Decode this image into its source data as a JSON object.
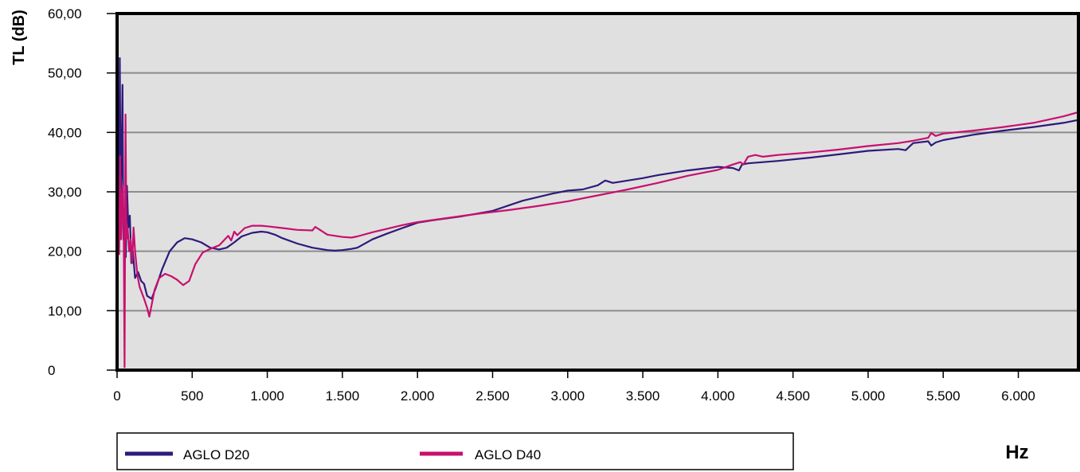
{
  "chart_data": {
    "type": "line",
    "ylabel": "TL (dB)",
    "xlabel": "Hz",
    "xlim": [
      0,
      6400
    ],
    "ylim": [
      0,
      60
    ],
    "grid": true,
    "legend_position": "bottom",
    "plot_background": "#e0e0e0",
    "x_ticks": [
      0,
      500,
      1000,
      1500,
      2000,
      2500,
      3000,
      3500,
      4000,
      4500,
      5000,
      5500,
      6000
    ],
    "x_tick_labels": [
      "0",
      "500",
      "1.000",
      "1.500",
      "2.000",
      "2.500",
      "3.000",
      "3.500",
      "4.000",
      "4.500",
      "5.000",
      "5.500",
      "6.000"
    ],
    "y_ticks": [
      0,
      10,
      20,
      30,
      40,
      50,
      60
    ],
    "y_tick_labels": [
      "0",
      "10,00",
      "20,00",
      "30,00",
      "40,00",
      "50,00",
      "60,00"
    ],
    "series": [
      {
        "name": "AGLO D20",
        "color": "#2e1a7a",
        "x": [
          0,
          6,
          12,
          18,
          24,
          30,
          36,
          42,
          50,
          58,
          66,
          75,
          85,
          95,
          105,
          120,
          140,
          160,
          180,
          200,
          230,
          260,
          300,
          350,
          400,
          450,
          500,
          560,
          620,
          680,
          730,
          780,
          830,
          900,
          960,
          1000,
          1050,
          1100,
          1200,
          1300,
          1400,
          1450,
          1500,
          1560,
          1600,
          1700,
          1800,
          1900,
          2000,
          2100,
          2300,
          2500,
          2700,
          2900,
          3000,
          3100,
          3200,
          3250,
          3300,
          3400,
          3500,
          3600,
          3700,
          3800,
          3900,
          4000,
          4100,
          4140,
          4160,
          4200,
          4400,
          4600,
          4800,
          5000,
          5200,
          5250,
          5300,
          5400,
          5420,
          5450,
          5500,
          5700,
          5900,
          6100,
          6300,
          6400
        ],
        "y": [
          7,
          40,
          26,
          52.5,
          29,
          35,
          48,
          22,
          27,
          19,
          31,
          24,
          26,
          18,
          20,
          15.5,
          16.5,
          15,
          14.5,
          12.5,
          12,
          14,
          17,
          20,
          21.5,
          22.2,
          22,
          21.5,
          20.6,
          20.3,
          20.6,
          21.5,
          22.5,
          23.1,
          23.3,
          23.2,
          22.8,
          22.2,
          21.3,
          20.6,
          20.2,
          20.1,
          20.2,
          20.4,
          20.6,
          22,
          23,
          23.9,
          24.8,
          25.2,
          25.9,
          26.8,
          28.5,
          29.7,
          30.2,
          30.4,
          31.1,
          31.9,
          31.5,
          31.9,
          32.3,
          32.8,
          33.2,
          33.6,
          33.9,
          34.2,
          34,
          33.6,
          34.6,
          34.8,
          35.2,
          35.7,
          36.3,
          36.9,
          37.2,
          37,
          38.2,
          38.5,
          37.8,
          38.3,
          38.7,
          39.6,
          40.3,
          40.9,
          41.6,
          42.1
        ]
      },
      {
        "name": "AGLO D40",
        "color": "#c8106e",
        "x": [
          0,
          8,
          14,
          20,
          26,
          32,
          38,
          44,
          50,
          56,
          62,
          70,
          80,
          90,
          100,
          110,
          120,
          135,
          150,
          165,
          180,
          200,
          215,
          230,
          250,
          280,
          320,
          360,
          400,
          440,
          480,
          520,
          570,
          620,
          680,
          740,
          760,
          780,
          800,
          850,
          900,
          960,
          1000,
          1100,
          1200,
          1300,
          1320,
          1400,
          1500,
          1560,
          1600,
          1700,
          1800,
          1900,
          2000,
          2200,
          2400,
          2600,
          2800,
          3000,
          3200,
          3400,
          3600,
          3800,
          4000,
          4100,
          4150,
          4170,
          4200,
          4250,
          4300,
          4400,
          4600,
          4800,
          5000,
          5200,
          5300,
          5400,
          5420,
          5450,
          5500,
          5700,
          5900,
          6100,
          6300,
          6400
        ],
        "y": [
          16,
          23.5,
          19.5,
          36,
          22,
          27,
          31,
          24,
          0.5,
          43,
          22,
          24,
          20,
          22,
          18,
          24,
          20,
          16,
          14,
          13,
          12,
          10.5,
          9,
          11,
          13.5,
          15.5,
          16.2,
          15.8,
          15.2,
          14.3,
          15,
          17.8,
          19.8,
          20.4,
          21,
          22.6,
          21.8,
          23.3,
          22.7,
          23.9,
          24.3,
          24.3,
          24.2,
          23.9,
          23.6,
          23.5,
          24.1,
          22.8,
          22.4,
          22.3,
          22.5,
          23.2,
          23.8,
          24.4,
          24.9,
          25.6,
          26.3,
          26.9,
          27.6,
          28.4,
          29.4,
          30.4,
          31.5,
          32.7,
          33.7,
          34.6,
          35,
          34.6,
          35.9,
          36.2,
          35.9,
          36.2,
          36.6,
          37.1,
          37.7,
          38.2,
          38.6,
          39.1,
          39.9,
          39.4,
          39.8,
          40.3,
          40.9,
          41.6,
          42.7,
          43.4
        ]
      }
    ]
  }
}
